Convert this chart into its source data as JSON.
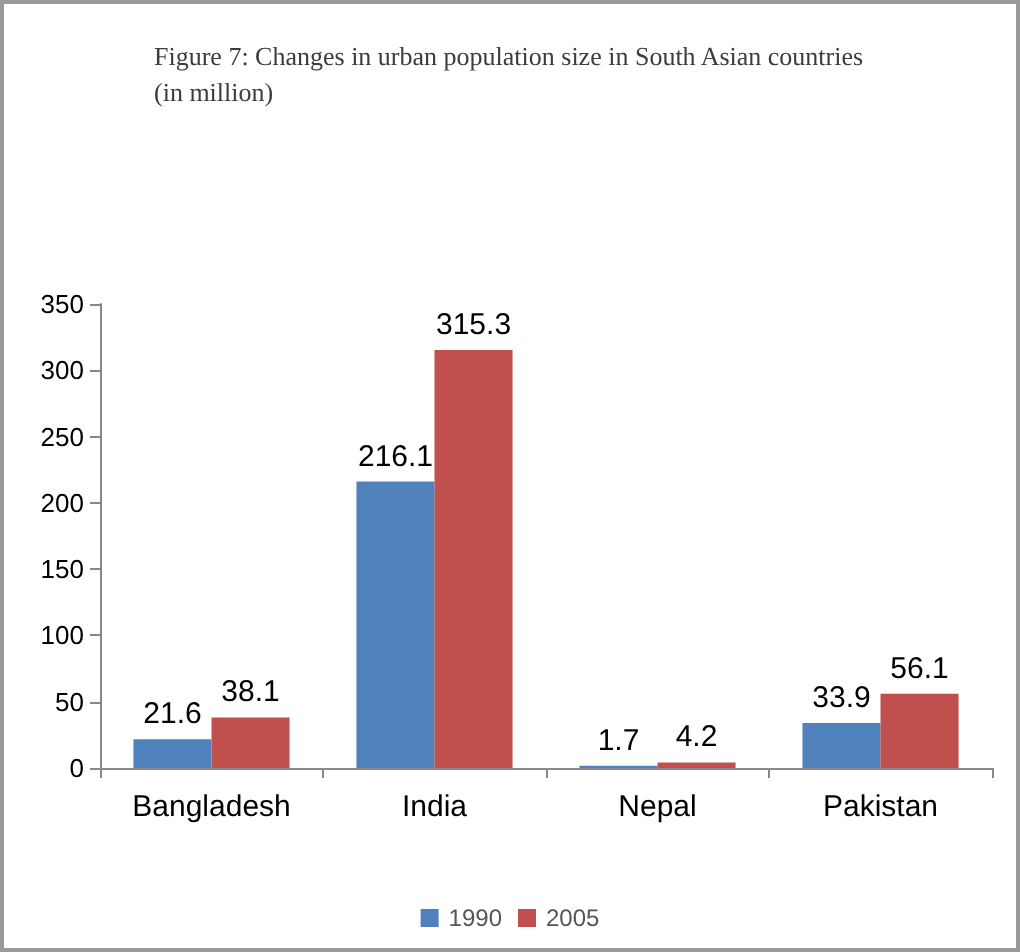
{
  "chart_data": {
    "type": "bar",
    "title": "Figure 7: Changes in urban population size in South Asian countries (in million)",
    "categories": [
      "Bangladesh",
      "India",
      "Nepal",
      "Pakistan"
    ],
    "series": [
      {
        "name": "1990",
        "color": "#4f81bd",
        "values": [
          21.6,
          216.1,
          1.7,
          33.9
        ]
      },
      {
        "name": "2005",
        "color": "#c0504d",
        "values": [
          38.1,
          315.3,
          4.2,
          56.1
        ]
      }
    ],
    "ylim": [
      0,
      350
    ],
    "yticks": [
      0,
      50,
      100,
      150,
      200,
      250,
      300,
      350
    ],
    "grid": false,
    "legend": "bottom",
    "data_labels": true
  }
}
